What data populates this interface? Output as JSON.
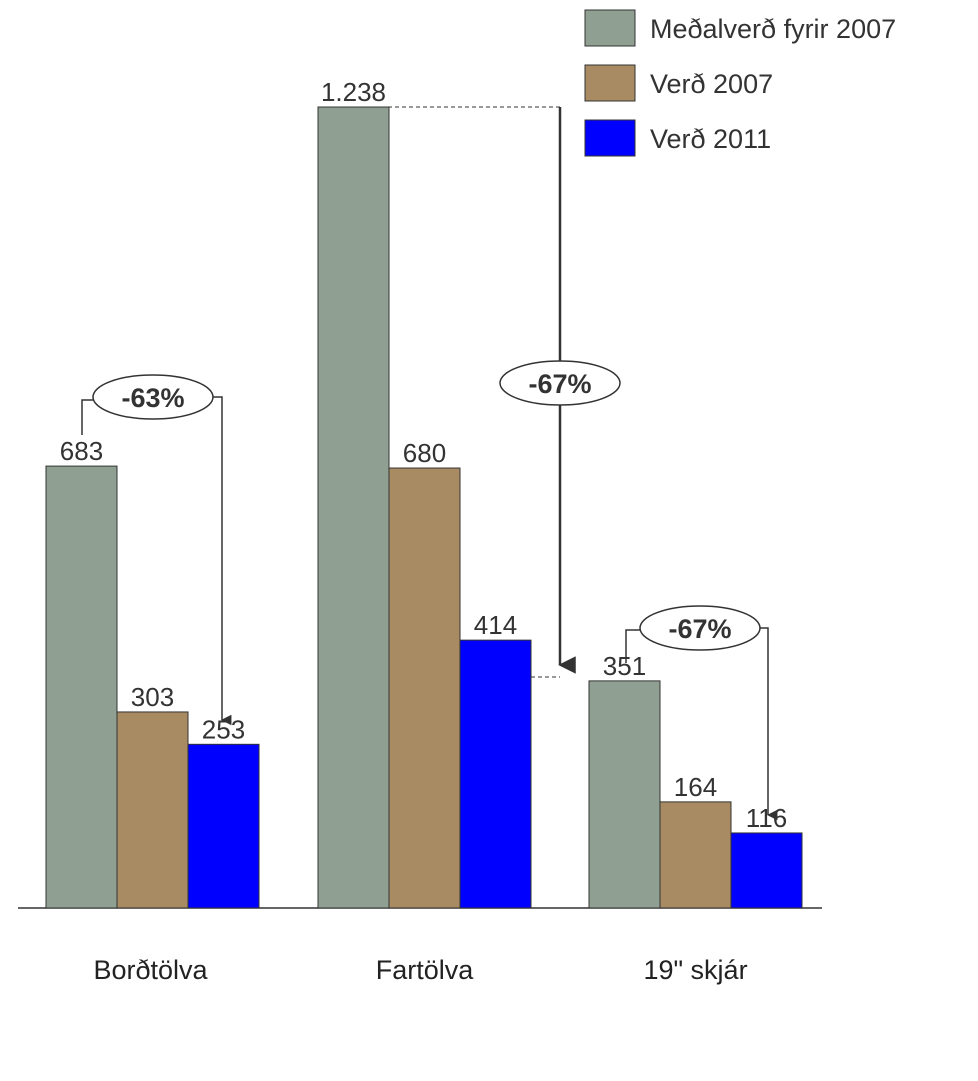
{
  "chart_data": {
    "type": "bar",
    "categories": [
      "Borðtölva",
      "Fartölva",
      "19\" skjár"
    ],
    "series": [
      {
        "name": "Meðalverð fyrir 2007",
        "color": "#8fa092",
        "values": [
          683,
          1238,
          351
        ],
        "value_labels": [
          "683",
          "1.238",
          "351"
        ]
      },
      {
        "name": "Verð 2007",
        "color": "#a88b63",
        "values": [
          303,
          680,
          164
        ],
        "value_labels": [
          "303",
          "680",
          "164"
        ]
      },
      {
        "name": "Verð 2011",
        "color": "#0000ff",
        "values": [
          253,
          414,
          116
        ],
        "value_labels": [
          "253",
          "414",
          "116"
        ]
      }
    ],
    "annotations": [
      "-63%",
      "-67%",
      "-67%"
    ],
    "legend": "top-right"
  }
}
